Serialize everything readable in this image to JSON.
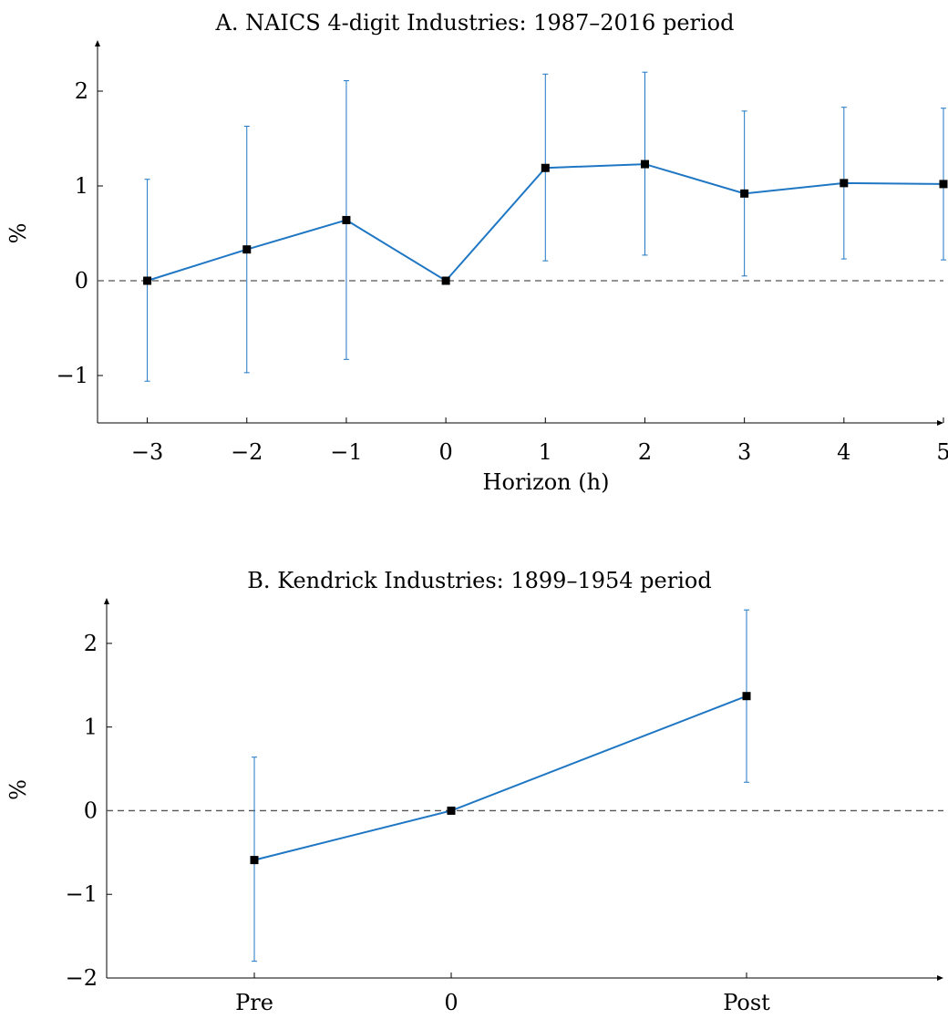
{
  "colors": {
    "series_line": "#1f77c4",
    "marker": "#000000",
    "zero_line": "#555555",
    "axis": "#000000"
  },
  "chart_data": [
    {
      "type": "line",
      "title": "A. NAICS 4-digit Industries: 1987–2016 period",
      "xlabel": "Horizon (h)",
      "ylabel": "%",
      "x": [
        -3,
        -2,
        -1,
        0,
        1,
        2,
        3,
        4,
        5
      ],
      "x_tick_labels": [
        "−3",
        "−2",
        "−1",
        "0",
        "1",
        "2",
        "3",
        "4",
        "5"
      ],
      "xlim": [
        -3.5,
        5
      ],
      "ylim": [
        -1.5,
        2.5
      ],
      "y_ticks": [
        -1,
        0,
        1,
        2
      ],
      "y_tick_labels": [
        "−1",
        "0",
        "1",
        "2"
      ],
      "series": [
        {
          "values": [
            0.0,
            0.33,
            0.64,
            0.0,
            1.19,
            1.23,
            0.92,
            1.03,
            1.02
          ],
          "ci_lower": [
            -1.06,
            -0.97,
            -0.83,
            0.0,
            0.21,
            0.27,
            0.05,
            0.23,
            0.22
          ],
          "ci_upper": [
            1.07,
            1.63,
            2.11,
            0.0,
            2.18,
            2.2,
            1.79,
            1.83,
            1.82
          ]
        }
      ],
      "reference_line": 0,
      "grid": false
    },
    {
      "type": "line",
      "title": "B. Kendrick Industries: 1899–1954 period",
      "xlabel": "",
      "ylabel": "%",
      "categories": [
        "Pre",
        "0",
        "Post"
      ],
      "x": [
        -1,
        0,
        1.5
      ],
      "xlim": [
        -1.75,
        2.5
      ],
      "ylim": [
        -2,
        2.5
      ],
      "y_ticks": [
        -2,
        -1,
        0,
        1,
        2
      ],
      "y_tick_labels": [
        "−2",
        "−1",
        "0",
        "1",
        "2"
      ],
      "series": [
        {
          "values": [
            -0.59,
            0.0,
            1.37
          ],
          "ci_lower": [
            -1.8,
            0.0,
            0.34
          ],
          "ci_upper": [
            0.64,
            0.0,
            2.4
          ]
        }
      ],
      "reference_line": 0,
      "grid": false
    }
  ]
}
